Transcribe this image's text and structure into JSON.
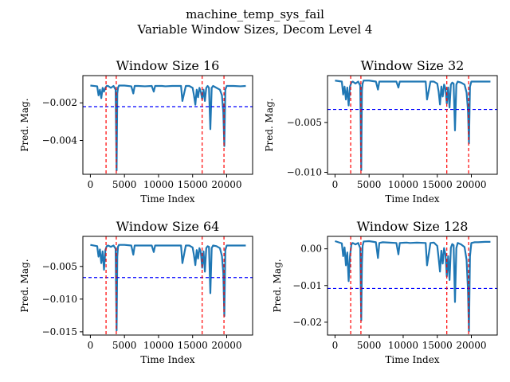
{
  "suptitle_line1": "machine_temp_sys_fail",
  "suptitle_line2": "Variable Window Sizes, Decom Level 4",
  "chart_data": [
    {
      "type": "line",
      "title": "Window Size 16",
      "xlabel": "Time Index",
      "ylabel": "Pred. Mag.",
      "xlim": [
        -1100,
        23800
      ],
      "ylim": [
        -0.0058,
        -0.00055
      ],
      "xticks": [
        0,
        5000,
        10000,
        15000,
        20000
      ],
      "xtick_labels": [
        "0",
        "5000",
        "10000",
        "15000",
        "20000"
      ],
      "yticks": [
        -0.002,
        -0.004
      ],
      "ytick_labels": [
        "−0.002",
        "−0.004"
      ],
      "threshold": -0.0022,
      "events": [
        2300,
        3800,
        16400,
        19600
      ],
      "baseline": -0.00108,
      "series": [
        {
          "name": "",
          "x": [
            0,
            1000,
            1200,
            1400,
            1600,
            1800,
            2000,
            2200,
            2400,
            2600,
            3000,
            3400,
            3700,
            3850,
            3950,
            4050,
            4200,
            5000,
            6000,
            6300,
            6500,
            7000,
            8000,
            9000,
            9300,
            9500,
            10500,
            11000,
            12000,
            13300,
            13500,
            14000,
            14500,
            15000,
            15200,
            15400,
            15600,
            15800,
            16000,
            16200,
            16400,
            16600,
            16800,
            17000,
            17200,
            17400,
            17600,
            17800,
            18000,
            18500,
            19000,
            19300,
            19500,
            19650,
            19800,
            20000,
            20500,
            21000,
            22000,
            22800
          ],
          "values": [
            -0.00108,
            -0.00112,
            -0.0016,
            -0.0013,
            -0.00175,
            -0.0012,
            -0.0014,
            -0.0012,
            -0.0011,
            -0.0011,
            -0.0012,
            -0.0011,
            -0.0013,
            -0.0056,
            -0.0015,
            -0.0012,
            -0.00108,
            -0.00108,
            -0.00112,
            -0.0015,
            -0.0011,
            -0.0011,
            -0.00112,
            -0.0011,
            -0.0014,
            -0.0011,
            -0.0011,
            -0.00112,
            -0.0011,
            -0.0011,
            -0.0019,
            -0.0011,
            -0.0011,
            -0.0012,
            -0.0016,
            -0.0021,
            -0.0013,
            -0.0017,
            -0.0012,
            -0.0014,
            -0.0018,
            -0.0013,
            -0.0019,
            -0.0012,
            -0.0011,
            -0.0012,
            -0.0034,
            -0.0012,
            -0.0011,
            -0.0012,
            -0.0013,
            -0.0016,
            -0.0025,
            -0.0043,
            -0.0013,
            -0.0011,
            -0.0011,
            -0.0011,
            -0.00112,
            -0.0011
          ]
        }
      ]
    },
    {
      "type": "line",
      "title": "Window Size 32",
      "xlabel": "Time Index",
      "ylabel": "Pred. Mag.",
      "xlim": [
        -1100,
        23800
      ],
      "ylim": [
        -0.0102,
        -0.0003
      ],
      "xticks": [
        0,
        5000,
        10000,
        15000,
        20000
      ],
      "xtick_labels": [
        "0",
        "5000",
        "10000",
        "15000",
        "20000"
      ],
      "yticks": [
        -0.005,
        -0.01
      ],
      "ytick_labels": [
        "−0.005",
        "−0.010"
      ],
      "threshold": -0.0037,
      "events": [
        2300,
        3800,
        16400,
        19600
      ],
      "baseline": -0.0008,
      "series": [
        {
          "name": "",
          "x": [
            0,
            1000,
            1200,
            1400,
            1600,
            1800,
            2000,
            2200,
            2400,
            2600,
            3000,
            3400,
            3700,
            3850,
            3950,
            4050,
            4200,
            5000,
            6000,
            6300,
            6500,
            7000,
            8000,
            9000,
            9300,
            9500,
            10500,
            11000,
            12000,
            13300,
            13500,
            14000,
            14500,
            15000,
            15200,
            15400,
            15600,
            15800,
            16000,
            16200,
            16400,
            16600,
            16800,
            17000,
            17200,
            17400,
            17600,
            17800,
            18000,
            18500,
            19000,
            19300,
            19500,
            19650,
            19800,
            20000,
            20500,
            21000,
            22000,
            22800
          ],
          "values": [
            -0.0008,
            -0.0009,
            -0.0022,
            -0.0014,
            -0.0027,
            -0.0015,
            -0.0033,
            -0.0014,
            -0.001,
            -0.0009,
            -0.0011,
            -0.0009,
            -0.0013,
            -0.0098,
            -0.0018,
            -0.0011,
            -0.0008,
            -0.0008,
            -0.0009,
            -0.0017,
            -0.0009,
            -0.0009,
            -0.0009,
            -0.0009,
            -0.0015,
            -0.0009,
            -0.0009,
            -0.0009,
            -0.0009,
            -0.0009,
            -0.0027,
            -0.0009,
            -0.0009,
            -0.0011,
            -0.0019,
            -0.0032,
            -0.0014,
            -0.0024,
            -0.0012,
            -0.0016,
            -0.0031,
            -0.0015,
            -0.0035,
            -0.0012,
            -0.001,
            -0.0011,
            -0.0058,
            -0.0012,
            -0.0009,
            -0.001,
            -0.0012,
            -0.002,
            -0.0037,
            -0.0071,
            -0.0014,
            -0.0009,
            -0.0009,
            -0.0009,
            -0.0009,
            -0.0009
          ]
        }
      ]
    },
    {
      "type": "line",
      "title": "Window Size 64",
      "xlabel": "Time Index",
      "ylabel": "Pred. Mag.",
      "xlim": [
        -1100,
        23800
      ],
      "ylim": [
        -0.0155,
        -0.0004
      ],
      "xticks": [
        0,
        5000,
        10000,
        15000,
        20000
      ],
      "xtick_labels": [
        "0",
        "5000",
        "10000",
        "15000",
        "20000"
      ],
      "yticks": [
        -0.005,
        -0.01,
        -0.015
      ],
      "ytick_labels": [
        "−0.005",
        "−0.010",
        "−0.015"
      ],
      "threshold": -0.0067,
      "events": [
        2300,
        3800,
        16400,
        19600
      ],
      "baseline": -0.0017,
      "series": [
        {
          "name": "",
          "x": [
            0,
            1000,
            1200,
            1400,
            1600,
            1800,
            2000,
            2200,
            2400,
            2600,
            3000,
            3400,
            3700,
            3850,
            3950,
            4050,
            4200,
            5000,
            6000,
            6300,
            6500,
            7000,
            8000,
            9000,
            9300,
            9500,
            10500,
            11000,
            12000,
            13300,
            13500,
            14000,
            14500,
            15000,
            15200,
            15400,
            15600,
            15800,
            16000,
            16200,
            16400,
            16600,
            16800,
            17000,
            17200,
            17400,
            17600,
            17800,
            18000,
            18500,
            19000,
            19300,
            19500,
            19650,
            19800,
            20000,
            20500,
            21000,
            22000,
            22800
          ],
          "values": [
            -0.0017,
            -0.0019,
            -0.0035,
            -0.0024,
            -0.0045,
            -0.0027,
            -0.0055,
            -0.0025,
            -0.0019,
            -0.0018,
            -0.002,
            -0.0018,
            -0.0023,
            -0.0148,
            -0.0035,
            -0.002,
            -0.0017,
            -0.0017,
            -0.0018,
            -0.0032,
            -0.0018,
            -0.0018,
            -0.0018,
            -0.0018,
            -0.0028,
            -0.0018,
            -0.0018,
            -0.0018,
            -0.0018,
            -0.0018,
            -0.0045,
            -0.0018,
            -0.0018,
            -0.0021,
            -0.0033,
            -0.0048,
            -0.0025,
            -0.0038,
            -0.0022,
            -0.0028,
            -0.0052,
            -0.0027,
            -0.0058,
            -0.0022,
            -0.0019,
            -0.002,
            -0.0091,
            -0.0022,
            -0.0018,
            -0.0019,
            -0.0022,
            -0.0034,
            -0.006,
            -0.0126,
            -0.0025,
            -0.0018,
            -0.0018,
            -0.0018,
            -0.0018,
            -0.0018
          ]
        }
      ]
    },
    {
      "type": "line",
      "title": "Window Size 128",
      "xlabel": "Time Index",
      "ylabel": "Pred. Mag.",
      "xlim": [
        -1100,
        23800
      ],
      "ylim": [
        -0.0235,
        0.0034
      ],
      "xticks": [
        0,
        5000,
        10000,
        15000,
        20000
      ],
      "xtick_labels": [
        "0",
        "5000",
        "10000",
        "15000",
        "20000"
      ],
      "yticks": [
        0.0,
        -0.01,
        -0.02
      ],
      "ytick_labels": [
        "0.00",
        "−0.01",
        "−0.02"
      ],
      "threshold": -0.0108,
      "events": [
        2300,
        3800,
        16400,
        19600
      ],
      "baseline": 0.0021,
      "series": [
        {
          "name": "",
          "x": [
            0,
            1000,
            1200,
            1400,
            1600,
            1800,
            2000,
            2200,
            2400,
            2600,
            3000,
            3400,
            3700,
            3850,
            3950,
            4050,
            4200,
            5000,
            6000,
            6300,
            6500,
            7000,
            8000,
            9000,
            9300,
            9500,
            10500,
            11000,
            12000,
            13300,
            13500,
            14000,
            14500,
            15000,
            15200,
            15400,
            15600,
            15800,
            16000,
            16200,
            16400,
            16600,
            16800,
            17000,
            17200,
            17400,
            17600,
            17800,
            18000,
            18500,
            19000,
            19300,
            19500,
            19650,
            19800,
            20000,
            20500,
            21000,
            22000,
            22800
          ],
          "values": [
            0.0021,
            0.0015,
            -0.002,
            0.0004,
            -0.0045,
            -0.001,
            -0.0088,
            -0.002,
            0.0012,
            0.0016,
            0.0012,
            0.0016,
            0.0002,
            -0.0195,
            -0.004,
            0.0008,
            0.002,
            0.0021,
            0.0018,
            -0.0025,
            0.0016,
            0.0018,
            0.0017,
            0.0016,
            -0.0015,
            0.0016,
            0.0017,
            0.0016,
            0.0017,
            0.0016,
            -0.0045,
            0.0016,
            0.0017,
            0.0008,
            -0.0025,
            -0.0062,
            -0.0005,
            -0.004,
            0.0002,
            -0.0015,
            -0.0075,
            -0.002,
            -0.0085,
            0.0003,
            0.0013,
            0.001,
            -0.0145,
            0.0002,
            0.0016,
            0.0012,
            0.0005,
            -0.003,
            -0.011,
            -0.0225,
            -0.002,
            0.0016,
            0.0018,
            0.0018,
            0.0019,
            0.0019
          ]
        }
      ]
    }
  ]
}
